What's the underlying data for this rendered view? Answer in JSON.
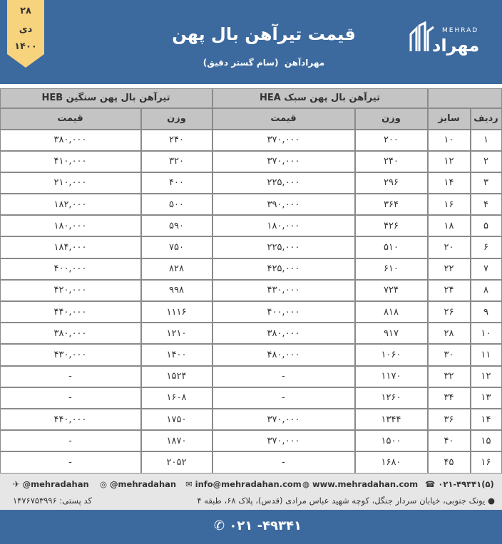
{
  "header": {
    "date": {
      "day": "۲۸",
      "month": "دی",
      "year": "۱۴۰۰"
    },
    "title": "قیمت تیرآهن بال پهن",
    "subtitle": "مهرادآهن",
    "subtitle_note": "(سام گستر دقیق)",
    "logo": {
      "latin": "MEHRAD",
      "persian": "مهراد"
    }
  },
  "table": {
    "groups": [
      "تیرآهن بال پهن سبک HEA",
      "تیرآهن بال پهن سنگین HEB"
    ],
    "columns": [
      "ردیف",
      "سایز",
      "وزن",
      "قیمت",
      "وزن",
      "قیمت"
    ],
    "rows": [
      [
        "۱",
        "۱۰",
        "۲۰۰",
        "۳۷۰,۰۰۰",
        "۲۴۰",
        "۳۸۰,۰۰۰"
      ],
      [
        "۲",
        "۱۲",
        "۲۴۰",
        "۳۷۰,۰۰۰",
        "۳۲۰",
        "۴۱۰,۰۰۰"
      ],
      [
        "۳",
        "۱۴",
        "۲۹۶",
        "۲۲۵,۰۰۰",
        "۴۰۰",
        "۲۱۰,۰۰۰"
      ],
      [
        "۴",
        "۱۶",
        "۳۶۴",
        "۳۹۰,۰۰۰",
        "۵۰۰",
        "۱۸۲,۰۰۰"
      ],
      [
        "۵",
        "۱۸",
        "۴۲۶",
        "۱۸۰,۰۰۰",
        "۵۹۰",
        "۱۸۰,۰۰۰"
      ],
      [
        "۶",
        "۲۰",
        "۵۱۰",
        "۲۲۵,۰۰۰",
        "۷۵۰",
        "۱۸۴,۰۰۰"
      ],
      [
        "۷",
        "۲۲",
        "۶۱۰",
        "۴۲۵,۰۰۰",
        "۸۲۸",
        "۴۰۰,۰۰۰"
      ],
      [
        "۸",
        "۲۴",
        "۷۲۴",
        "۴۳۰,۰۰۰",
        "۹۹۸",
        "۴۲۰,۰۰۰"
      ],
      [
        "۹",
        "۲۶",
        "۸۱۸",
        "۴۰۰,۰۰۰",
        "۱۱۱۶",
        "۴۴۰,۰۰۰"
      ],
      [
        "۱۰",
        "۲۸",
        "۹۱۷",
        "۳۸۰,۰۰۰",
        "۱۲۱۰",
        "۳۸۰,۰۰۰"
      ],
      [
        "۱۱",
        "۳۰",
        "۱۰۶۰",
        "۴۸۰,۰۰۰",
        "۱۴۰۰",
        "۴۳۰,۰۰۰"
      ],
      [
        "۱۲",
        "۳۲",
        "۱۱۷۰",
        "-",
        "۱۵۲۴",
        "-"
      ],
      [
        "۱۳",
        "۳۴",
        "۱۲۶۰",
        "-",
        "۱۶۰۸",
        "-"
      ],
      [
        "۱۴",
        "۳۶",
        "۱۳۴۴",
        "۳۷۰,۰۰۰",
        "۱۷۵۰",
        "۴۴۰,۰۰۰"
      ],
      [
        "۱۵",
        "۴۰",
        "۱۵۰۰",
        "۳۷۰,۰۰۰",
        "۱۸۷۰",
        "-"
      ],
      [
        "۱۶",
        "۴۵",
        "۱۶۸۰",
        "-",
        "۲۰۵۲",
        "-"
      ]
    ]
  },
  "footer": {
    "telegram": "@mehradahan",
    "instagram": "@mehradahan",
    "email": "info@mehradahan.com",
    "website": "www.mehradahan.com",
    "phone": "۰۲۱-۴۹۳۴۱(۵)",
    "postal_code": "کد پستی: ۱۴۷۶۷۵۳۹۹۶",
    "address": "یونک جنوبی، خیابان سردار جنگل، کوچه شهید عباس مرادی (قدس)، پلاک ۶۸، طبقه ۴",
    "bottom_phone": "۰۲۱ -۴۹۳۴۱"
  }
}
